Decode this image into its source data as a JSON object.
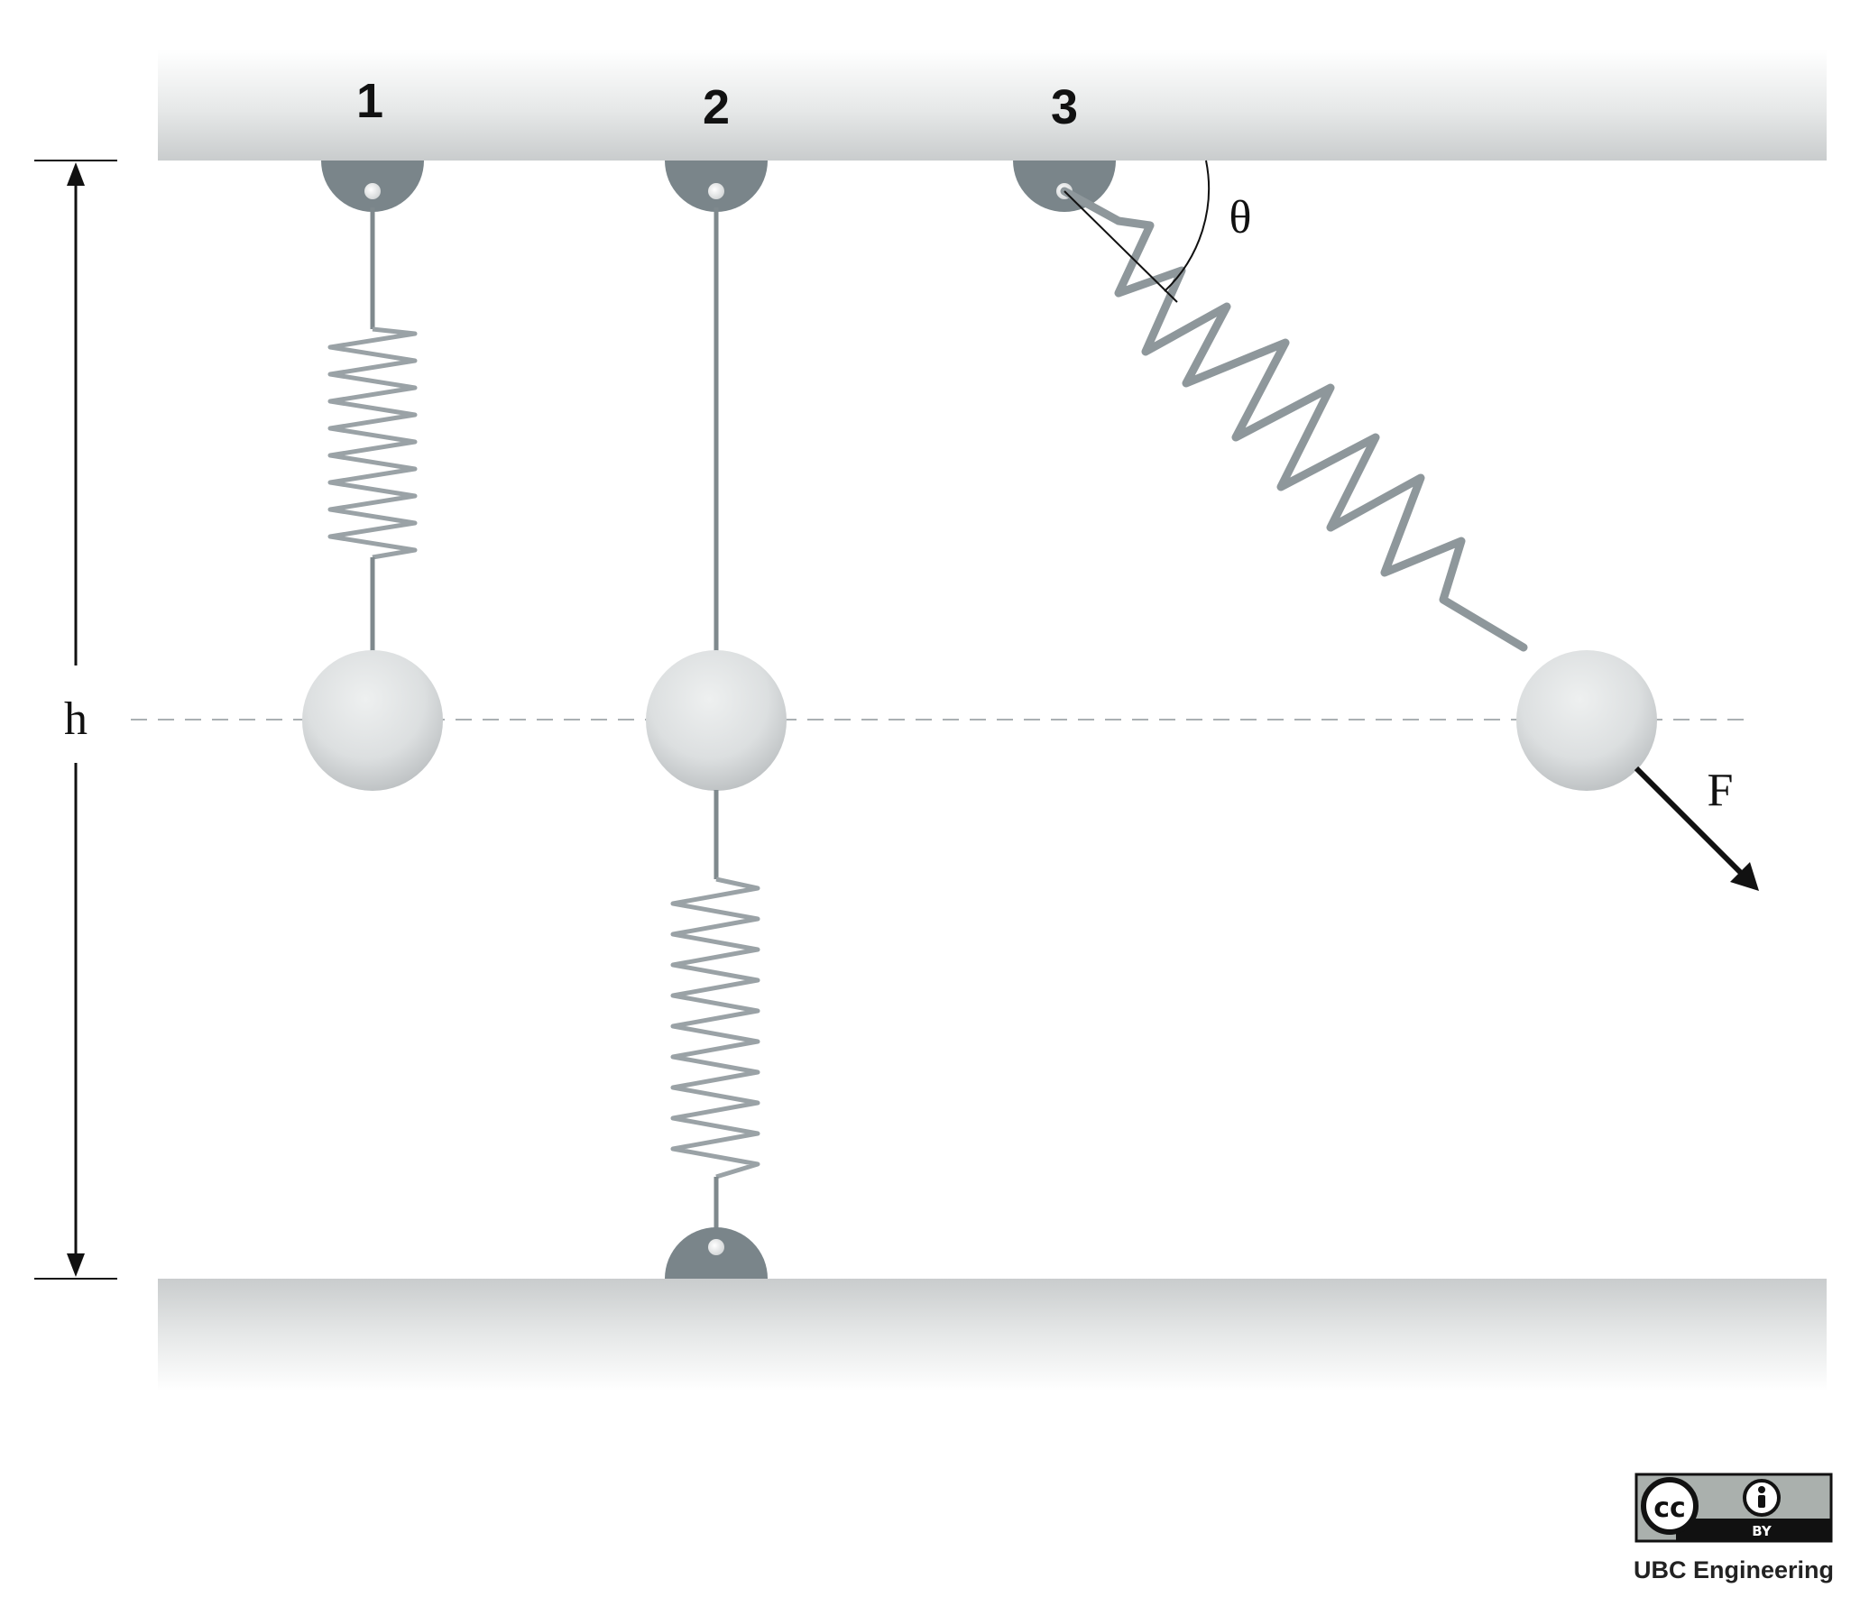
{
  "figure": {
    "case_labels": [
      "1",
      "2",
      "3"
    ],
    "height_symbol": "h",
    "angle_symbol": "θ",
    "force_symbol": "F"
  },
  "license": {
    "cc_symbol": "cc",
    "by_label": "BY",
    "credit": "UBC Engineering"
  },
  "colors": {
    "anchor": "#7a858a",
    "spring_dark": "#7f898d",
    "spring_light": "#c4c9cb",
    "ceiling_top": "#f4f5f5",
    "ceiling_bottom": "#c9cccd",
    "ball": "#dcdfe0",
    "text": "#111111"
  }
}
